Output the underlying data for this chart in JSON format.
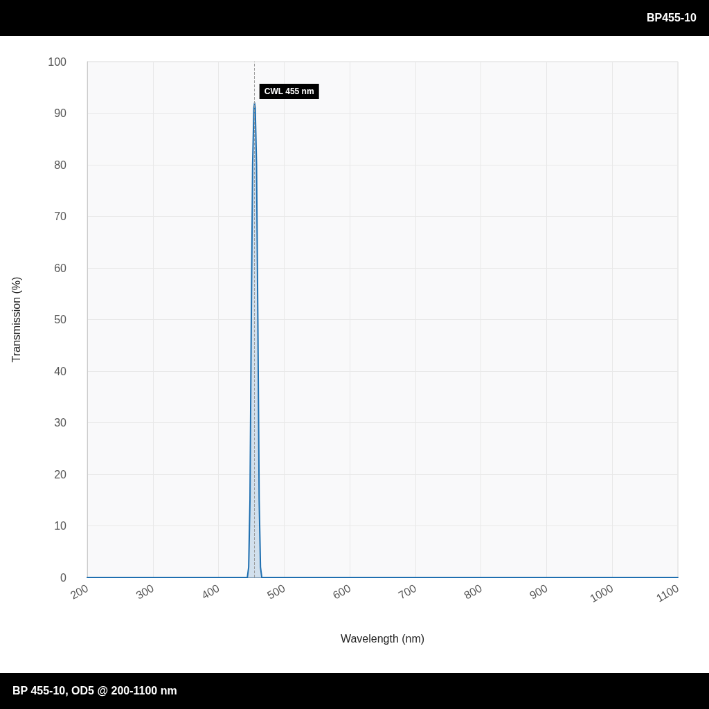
{
  "chart_data": {
    "type": "area",
    "title": "BP455-10",
    "xlabel": "Wavelength (nm)",
    "ylabel": "Transmission (%)",
    "annotations": [
      "BP 455-10, OD5 @ 200-1100 nm"
    ],
    "series": [
      {
        "color": "#1f6fb0",
        "x": [
          200,
          444,
          446,
          448,
          450,
          452,
          454,
          455,
          456,
          458,
          460,
          462,
          464,
          466,
          1100
        ],
        "values": [
          0,
          0,
          2,
          15,
          50,
          80,
          91,
          92,
          91,
          80,
          50,
          15,
          2,
          0,
          0
        ]
      }
    ],
    "xlim": [
      200,
      1100
    ],
    "xticks": [
      200,
      300,
      400,
      500,
      600,
      700,
      800,
      900,
      1000,
      1100
    ],
    "ylim": [
      0,
      100
    ],
    "yticks": [
      0,
      10,
      20,
      30,
      40,
      50,
      60,
      70,
      80,
      90,
      100
    ],
    "ref_lines": [
      {
        "axis": "x",
        "value": 455,
        "label": "CWL 455 nm",
        "color": "#999999",
        "line_style": "dashed"
      }
    ],
    "grid": true,
    "marker": "none",
    "line_style": "solid"
  }
}
